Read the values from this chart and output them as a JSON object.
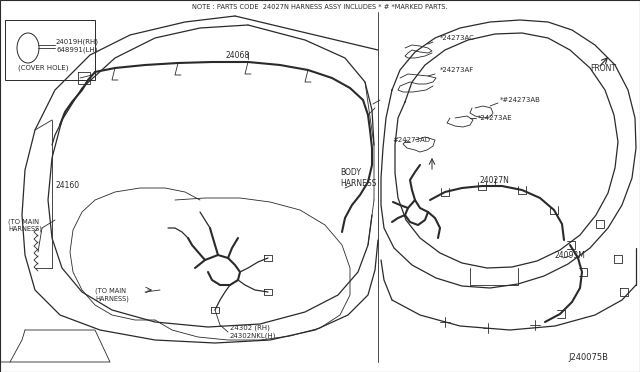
{
  "bg_color": "#ffffff",
  "line_color": "#2a2a2a",
  "title_note": "NOTE : PARTS CODE  24027N HARNESS ASSY INCLUDES * # *MARKED PARTS.",
  "diagram_id": "J240075B",
  "labels": {
    "cover_hole": "(COVER HOLE)",
    "part_24019h": "24019H(RH)",
    "part_648991": "648991(LH)",
    "part_24160": "24160",
    "part_24068": "24068",
    "body_harness": "BODY\nHARNESS",
    "to_main_1": "(TO MAIN\nHARNESS)",
    "to_main_2": "(TO MAIN\nHARNESS)",
    "part_24302": "24302 (RH)",
    "part_24302n": "24302NKL(H)",
    "part_24273ac": "*24273AC",
    "part_24273af": "*24273AF",
    "part_24273ab": "*#24273AB",
    "part_24273ae": "*24273AE",
    "part_24273ad": "#24273AD",
    "part_24027n": "24027N",
    "part_24093m": "24093M",
    "front": "FRONT"
  }
}
